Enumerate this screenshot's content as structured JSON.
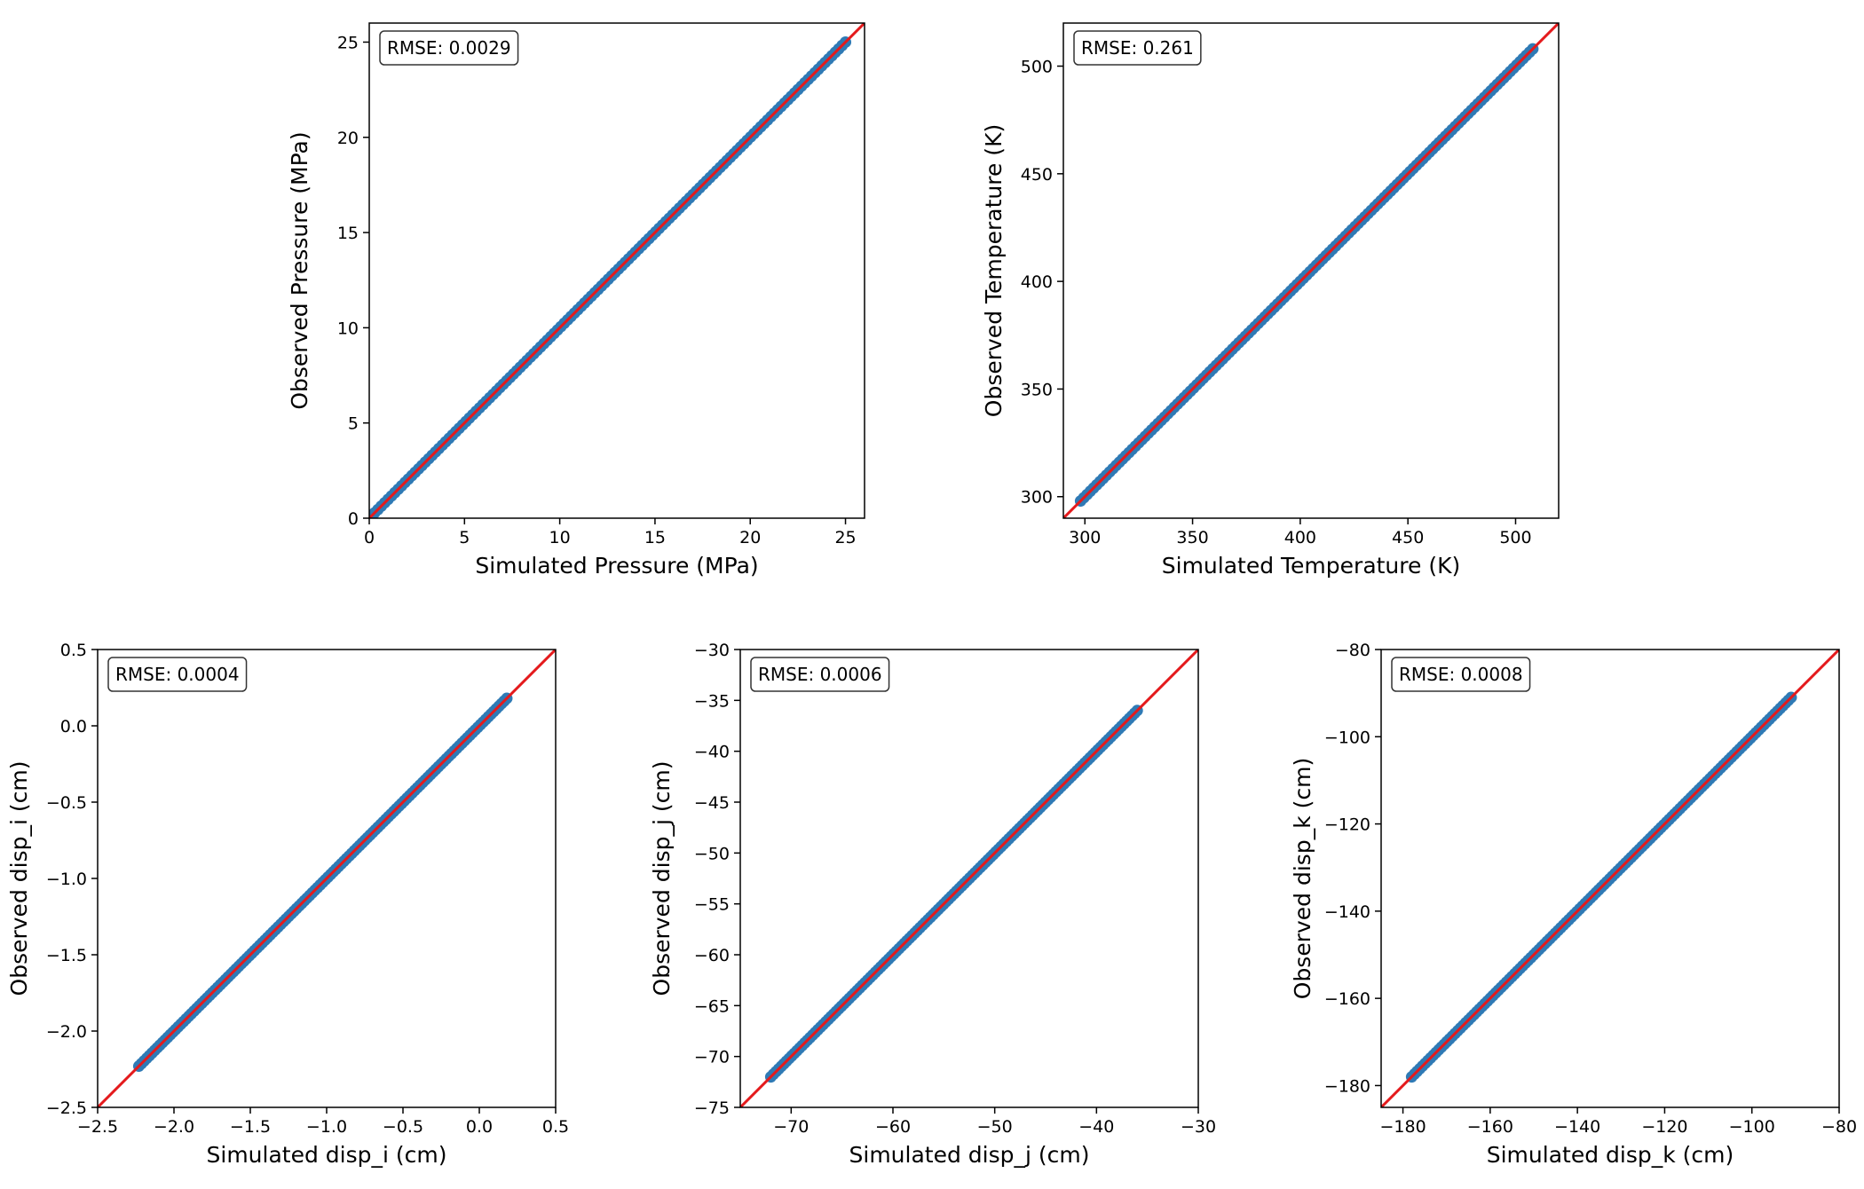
{
  "chart_data": [
    {
      "type": "scatter",
      "xlabel": "Simulated Pressure (MPa)",
      "ylabel": "Observed Pressure (MPa)",
      "annotation": "RMSE: 0.0029",
      "xlim": [
        0,
        26
      ],
      "ylim": [
        0,
        26
      ],
      "xticks": [
        0,
        5,
        10,
        15,
        20,
        25
      ],
      "yticks": [
        0,
        5,
        10,
        15,
        20,
        25
      ],
      "xtick_labels": [
        "0",
        "5",
        "10",
        "15",
        "20",
        "25"
      ],
      "ytick_labels": [
        "0",
        "5",
        "10",
        "15",
        "20",
        "25"
      ],
      "reference_line": "y = x",
      "data_range": [
        0.1,
        25
      ],
      "series": [
        {
          "values_x": [
            0.1,
            2.5,
            5,
            7.5,
            10,
            12.5,
            15,
            17.5,
            20,
            22.5,
            25
          ],
          "values_y": [
            0.1,
            2.5,
            5,
            7.5,
            10,
            12.5,
            15,
            17.5,
            20,
            22.5,
            25
          ]
        }
      ]
    },
    {
      "type": "scatter",
      "xlabel": "Simulated Temperature (K)",
      "ylabel": "Observed Temperature (K)",
      "annotation": "RMSE: 0.261",
      "xlim": [
        290,
        520
      ],
      "ylim": [
        290,
        520
      ],
      "xticks": [
        300,
        350,
        400,
        450,
        500
      ],
      "yticks": [
        300,
        350,
        400,
        450,
        500
      ],
      "xtick_labels": [
        "300",
        "350",
        "400",
        "450",
        "500"
      ],
      "ytick_labels": [
        "300",
        "350",
        "400",
        "450",
        "500"
      ],
      "reference_line": "y = x",
      "data_range": [
        298,
        508
      ],
      "series": [
        {
          "values_x": [
            298,
            320,
            350,
            380,
            410,
            440,
            470,
            500,
            508
          ],
          "values_y": [
            298,
            320,
            350,
            380,
            410,
            440,
            470,
            500,
            508
          ]
        }
      ]
    },
    {
      "type": "scatter",
      "xlabel": "Simulated disp_i (cm)",
      "ylabel": "Observed disp_i (cm)",
      "annotation": "RMSE: 0.0004",
      "xlim": [
        -2.5,
        0.5
      ],
      "ylim": [
        -2.5,
        0.5
      ],
      "xticks": [
        -2.5,
        -2.0,
        -1.5,
        -1.0,
        -0.5,
        0.0,
        0.5
      ],
      "yticks": [
        -2.5,
        -2.0,
        -1.5,
        -1.0,
        -0.5,
        0.0,
        0.5
      ],
      "xtick_labels": [
        "−2.5",
        "−2.0",
        "−1.5",
        "−1.0",
        "−0.5",
        "0.0",
        "0.5"
      ],
      "ytick_labels": [
        "−2.5",
        "−2.0",
        "−1.5",
        "−1.0",
        "−0.5",
        "0.0",
        "0.5"
      ],
      "reference_line": "y = x",
      "data_range": [
        -2.23,
        0.18
      ],
      "series": [
        {
          "values_x": [
            -2.23,
            -2.0,
            -1.5,
            -1.0,
            -0.5,
            0.0,
            0.18
          ],
          "values_y": [
            -2.23,
            -2.0,
            -1.5,
            -1.0,
            -0.5,
            0.0,
            0.18
          ]
        }
      ]
    },
    {
      "type": "scatter",
      "xlabel": "Simulated disp_j (cm)",
      "ylabel": "Observed disp_j (cm)",
      "annotation": "RMSE: 0.0006",
      "xlim": [
        -75,
        -30
      ],
      "ylim": [
        -75,
        -30
      ],
      "xticks": [
        -70,
        -60,
        -50,
        -40,
        -30
      ],
      "yticks": [
        -75,
        -70,
        -65,
        -60,
        -55,
        -50,
        -45,
        -40,
        -35,
        -30
      ],
      "xtick_labels": [
        "−70",
        "−60",
        "−50",
        "−40",
        "−30"
      ],
      "ytick_labels": [
        "−75",
        "−70",
        "−65",
        "−60",
        "−55",
        "−50",
        "−45",
        "−40",
        "−35",
        "−30"
      ],
      "reference_line": "y = x",
      "data_range": [
        -72,
        -36
      ],
      "series": [
        {
          "values_x": [
            -72,
            -65,
            -60,
            -55,
            -50,
            -45,
            -40,
            -36
          ],
          "values_y": [
            -72,
            -65,
            -60,
            -55,
            -50,
            -45,
            -40,
            -36
          ]
        }
      ]
    },
    {
      "type": "scatter",
      "xlabel": "Simulated disp_k (cm)",
      "ylabel": "Observed disp_k (cm)",
      "annotation": "RMSE: 0.0008",
      "xlim": [
        -185,
        -80
      ],
      "ylim": [
        -185,
        -80
      ],
      "xticks": [
        -180,
        -160,
        -140,
        -120,
        -100,
        -80
      ],
      "yticks": [
        -180,
        -160,
        -140,
        -120,
        -100,
        -80
      ],
      "xtick_labels": [
        "−180",
        "−160",
        "−140",
        "−120",
        "−100",
        "−80"
      ],
      "ytick_labels": [
        "−180",
        "−160",
        "−140",
        "−120",
        "−100",
        "−80"
      ],
      "reference_line": "y = x",
      "data_range": [
        -178,
        -91
      ],
      "series": [
        {
          "values_x": [
            -178,
            -160,
            -140,
            -120,
            -100,
            -91
          ],
          "values_y": [
            -178,
            -160,
            -140,
            -120,
            -100,
            -91
          ]
        }
      ]
    }
  ],
  "colors": {
    "points": "#2f7ab5",
    "reference_line": "#e41a1c",
    "axes": "#000000"
  }
}
